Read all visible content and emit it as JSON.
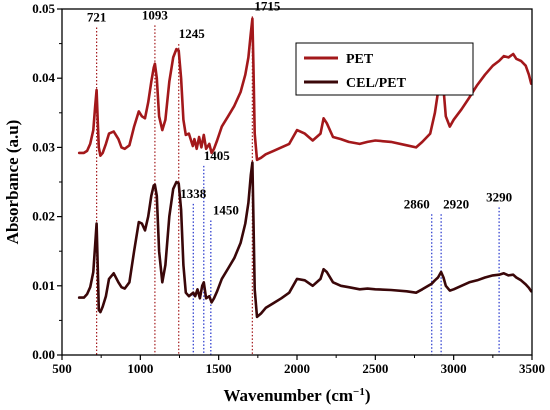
{
  "chart_data": {
    "type": "line",
    "xlabel": "Wavenumber (cm",
    "xlabel_sup": "−1",
    "xlabel_close": ")",
    "ylabel": "Absorbance (a.u)",
    "xlim": [
      500,
      3500
    ],
    "ylim": [
      0,
      0.05
    ],
    "x_ticks": [
      500,
      1000,
      1500,
      2000,
      2500,
      3000,
      3500
    ],
    "x_tick_labels": [
      "500",
      "1000",
      "1500",
      "2000",
      "2500",
      "3000",
      "3500"
    ],
    "y_ticks": [
      0,
      0.01,
      0.02,
      0.03,
      0.04,
      0.05
    ],
    "y_tick_labels": [
      "0.00",
      "0.01",
      "0.02",
      "0.03",
      "0.04",
      "0.05"
    ],
    "grid": false,
    "legend_position": "top-right",
    "series": [
      {
        "name": "PET",
        "color": "#a3181b",
        "x": [
          610,
          640,
          660,
          680,
          700,
          712,
          721,
          728,
          735,
          745,
          760,
          780,
          800,
          830,
          860,
          880,
          900,
          930,
          960,
          990,
          1010,
          1030,
          1050,
          1070,
          1085,
          1093,
          1105,
          1120,
          1140,
          1160,
          1185,
          1210,
          1230,
          1245,
          1260,
          1275,
          1290,
          1310,
          1335,
          1345,
          1360,
          1375,
          1390,
          1405,
          1420,
          1440,
          1455,
          1470,
          1490,
          1520,
          1560,
          1600,
          1640,
          1670,
          1690,
          1705,
          1715,
          1722,
          1730,
          1745,
          1770,
          1800,
          1850,
          1900,
          1950,
          2000,
          2050,
          2100,
          2150,
          2170,
          2190,
          2230,
          2280,
          2330,
          2400,
          2450,
          2500,
          2600,
          2700,
          2760,
          2800,
          2850,
          2880,
          2900,
          2920,
          2935,
          2950,
          2975,
          3000,
          3050,
          3100,
          3150,
          3200,
          3250,
          3290,
          3320,
          3350,
          3380,
          3400,
          3430,
          3460,
          3480,
          3495
        ],
        "y": [
          0.0292,
          0.0292,
          0.0295,
          0.0305,
          0.0325,
          0.036,
          0.0383,
          0.034,
          0.03,
          0.0288,
          0.0292,
          0.0305,
          0.032,
          0.0323,
          0.0312,
          0.03,
          0.0298,
          0.0303,
          0.033,
          0.0352,
          0.0345,
          0.0342,
          0.0365,
          0.0395,
          0.0415,
          0.0421,
          0.04,
          0.0345,
          0.0325,
          0.034,
          0.0395,
          0.043,
          0.0442,
          0.044,
          0.04,
          0.034,
          0.0318,
          0.032,
          0.0302,
          0.0312,
          0.0298,
          0.0315,
          0.03,
          0.0318,
          0.0298,
          0.0305,
          0.0292,
          0.0298,
          0.031,
          0.033,
          0.0345,
          0.036,
          0.038,
          0.0405,
          0.043,
          0.0465,
          0.0486,
          0.042,
          0.032,
          0.0282,
          0.0285,
          0.029,
          0.0295,
          0.03,
          0.0305,
          0.0325,
          0.032,
          0.031,
          0.032,
          0.0342,
          0.0335,
          0.0315,
          0.0312,
          0.0308,
          0.0305,
          0.0308,
          0.031,
          0.0308,
          0.0303,
          0.03,
          0.0308,
          0.032,
          0.035,
          0.038,
          0.0402,
          0.0385,
          0.0345,
          0.033,
          0.034,
          0.0355,
          0.0372,
          0.039,
          0.0405,
          0.0418,
          0.0425,
          0.0432,
          0.043,
          0.0435,
          0.0428,
          0.0425,
          0.0418,
          0.0405,
          0.0392
        ]
      },
      {
        "name": "CEL/PET",
        "color": "#3a0709",
        "x": [
          610,
          640,
          660,
          680,
          700,
          712,
          721,
          728,
          735,
          745,
          760,
          780,
          800,
          830,
          860,
          880,
          900,
          930,
          960,
          990,
          1010,
          1030,
          1050,
          1070,
          1085,
          1093,
          1105,
          1120,
          1140,
          1160,
          1185,
          1210,
          1230,
          1245,
          1260,
          1275,
          1290,
          1310,
          1338,
          1350,
          1365,
          1380,
          1395,
          1405,
          1420,
          1440,
          1455,
          1470,
          1490,
          1520,
          1560,
          1600,
          1640,
          1670,
          1690,
          1705,
          1715,
          1722,
          1730,
          1745,
          1770,
          1800,
          1850,
          1900,
          1950,
          2000,
          2050,
          2100,
          2150,
          2170,
          2190,
          2230,
          2280,
          2330,
          2400,
          2450,
          2500,
          2600,
          2700,
          2760,
          2800,
          2860,
          2880,
          2900,
          2920,
          2935,
          2950,
          2975,
          3000,
          3050,
          3100,
          3150,
          3200,
          3250,
          3290,
          3320,
          3350,
          3380,
          3400,
          3430,
          3460,
          3480,
          3495
        ],
        "y": [
          0.0083,
          0.0083,
          0.0088,
          0.0098,
          0.012,
          0.016,
          0.019,
          0.013,
          0.0065,
          0.0062,
          0.007,
          0.0085,
          0.011,
          0.0118,
          0.0105,
          0.0098,
          0.0096,
          0.0105,
          0.015,
          0.0192,
          0.019,
          0.018,
          0.02,
          0.023,
          0.0245,
          0.0246,
          0.023,
          0.015,
          0.0105,
          0.013,
          0.02,
          0.024,
          0.025,
          0.0248,
          0.021,
          0.013,
          0.009,
          0.0085,
          0.009,
          0.0085,
          0.0095,
          0.0082,
          0.01,
          0.0105,
          0.0082,
          0.0085,
          0.0076,
          0.0082,
          0.0092,
          0.011,
          0.0125,
          0.014,
          0.0162,
          0.019,
          0.022,
          0.026,
          0.0278,
          0.02,
          0.0095,
          0.0055,
          0.006,
          0.0068,
          0.0075,
          0.0082,
          0.009,
          0.011,
          0.0108,
          0.01,
          0.011,
          0.0124,
          0.012,
          0.0105,
          0.01,
          0.0098,
          0.0095,
          0.0096,
          0.0095,
          0.0094,
          0.0092,
          0.009,
          0.0095,
          0.0103,
          0.0108,
          0.0112,
          0.012,
          0.0112,
          0.01,
          0.0093,
          0.0095,
          0.01,
          0.0105,
          0.0108,
          0.0112,
          0.0115,
          0.0116,
          0.0118,
          0.0115,
          0.0116,
          0.0112,
          0.0108,
          0.0102,
          0.0097,
          0.0092
        ]
      }
    ],
    "annotations": [
      {
        "x": 721,
        "label": "721",
        "color": "#a3181b",
        "y_label": 0.0482,
        "label_dx": 0,
        "anchor": "middle",
        "y_bottom": 0.0
      },
      {
        "x": 1093,
        "label": "1093",
        "color": "#a3181b",
        "y_label": 0.0485,
        "label_dx": 0,
        "anchor": "middle",
        "y_bottom": 0.0
      },
      {
        "x": 1245,
        "label": "1245",
        "color": "#a3181b",
        "y_label": 0.0458,
        "label_dx": 0,
        "anchor": "start",
        "y_bottom": 0.0
      },
      {
        "x": 1715,
        "label": "1715",
        "color": "#a3181b",
        "y_label": 0.0498,
        "label_dx": 2,
        "anchor": "start",
        "y_bottom": 0.0
      },
      {
        "x": 1338,
        "label": "1338",
        "color": "#2233cc",
        "y_label": 0.0227,
        "label_dx": 0,
        "anchor": "middle",
        "y_bottom": 0.0
      },
      {
        "x": 1405,
        "label": "1405",
        "color": "#2233cc",
        "y_label": 0.0282,
        "label_dx": 0,
        "anchor": "start",
        "y_bottom": 0.0
      },
      {
        "x": 1450,
        "label": "1450",
        "color": "#2233cc",
        "y_label": 0.0203,
        "label_dx": 2,
        "anchor": "start",
        "y_bottom": 0.0
      },
      {
        "x": 2860,
        "label": "2860",
        "color": "#2233cc",
        "y_label": 0.0212,
        "label_dx": -2,
        "anchor": "end",
        "y_bottom": 0.0
      },
      {
        "x": 2920,
        "label": "2920",
        "color": "#2233cc",
        "y_label": 0.0212,
        "label_dx": 2,
        "anchor": "start",
        "y_bottom": 0.0
      },
      {
        "x": 3290,
        "label": "3290",
        "color": "#2233cc",
        "y_label": 0.0222,
        "label_dx": 0,
        "anchor": "middle",
        "y_bottom": 0.0
      }
    ]
  }
}
